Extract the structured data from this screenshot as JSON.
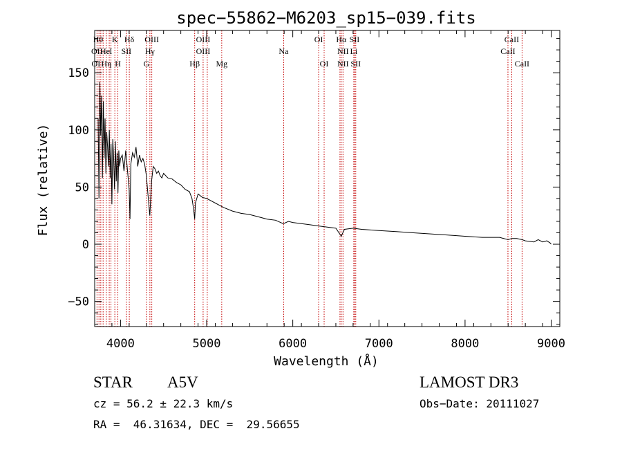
{
  "chart_data": {
    "type": "line",
    "title": "spec−55862−M6203_sp15−039.fits",
    "xlabel": "Wavelength (Å)",
    "ylabel": "Flux (relative)",
    "xlim": [
      3700,
      9100
    ],
    "ylim": [
      -72,
      187
    ],
    "xticks": [
      {
        "value": 4000,
        "label": "4000"
      },
      {
        "value": 5000,
        "label": "5000"
      },
      {
        "value": 6000,
        "label": "6000"
      },
      {
        "value": 7000,
        "label": "7000"
      },
      {
        "value": 8000,
        "label": "8000"
      },
      {
        "value": 9000,
        "label": "9000"
      }
    ],
    "yticks": [
      {
        "value": -50,
        "label": "−50"
      },
      {
        "value": 0,
        "label": "0"
      },
      {
        "value": 50,
        "label": "50"
      },
      {
        "value": 100,
        "label": "100"
      },
      {
        "value": 150,
        "label": "150"
      }
    ],
    "series": [
      {
        "name": "flux",
        "x": [
          3740,
          3750,
          3760,
          3770,
          3780,
          3790,
          3800,
          3810,
          3820,
          3830,
          3840,
          3850,
          3860,
          3870,
          3880,
          3890,
          3900,
          3910,
          3920,
          3930,
          3940,
          3950,
          3960,
          3970,
          3980,
          3990,
          4000,
          4020,
          4040,
          4060,
          4080,
          4100,
          4110,
          4120,
          4140,
          4160,
          4180,
          4200,
          4220,
          4240,
          4260,
          4280,
          4300,
          4320,
          4340,
          4360,
          4380,
          4400,
          4420,
          4440,
          4460,
          4480,
          4500,
          4550,
          4600,
          4650,
          4700,
          4750,
          4800,
          4830,
          4850,
          4861,
          4870,
          4900,
          4950,
          5000,
          5050,
          5100,
          5150,
          5200,
          5300,
          5400,
          5500,
          5600,
          5700,
          5800,
          5890,
          5950,
          6000,
          6100,
          6200,
          6300,
          6400,
          6500,
          6563,
          6600,
          6700,
          6800,
          7000,
          7200,
          7400,
          7600,
          7800,
          8000,
          8200,
          8400,
          8498,
          8542,
          8600,
          8662,
          8700,
          8800,
          8850,
          8900,
          8950,
          8990,
          9000
        ],
        "y": [
          110,
          40,
          142,
          95,
          130,
          58,
          125,
          75,
          110,
          62,
          98,
          85,
          68,
          100,
          58,
          88,
          35,
          92,
          76,
          48,
          90,
          55,
          80,
          45,
          82,
          68,
          75,
          78,
          64,
          82,
          65,
          48,
          22,
          70,
          80,
          76,
          85,
          68,
          78,
          72,
          75,
          70,
          60,
          42,
          25,
          55,
          68,
          66,
          62,
          64,
          60,
          58,
          62,
          58,
          57,
          54,
          52,
          48,
          46,
          40,
          30,
          22,
          36,
          44,
          41,
          40,
          38,
          36,
          34,
          32,
          29,
          27,
          26,
          24,
          22,
          21,
          18,
          20,
          19,
          18,
          17,
          16,
          15,
          14,
          7,
          13,
          14,
          13,
          12,
          11,
          10,
          9,
          8,
          7,
          6,
          6,
          4,
          5,
          5,
          4,
          3,
          2,
          4,
          2,
          3,
          1,
          0
        ]
      }
    ],
    "lines_wavelength": [
      3727,
      3750,
      3771,
      3798,
      3835,
      3869,
      3889,
      3934,
      3969,
      4068,
      4102,
      4300,
      4341,
      4363,
      4861,
      4959,
      5007,
      5175,
      5894,
      6300,
      6364,
      6548,
      6563,
      6583,
      6708,
      6716,
      6731,
      8498,
      8542,
      8662
    ],
    "line_labels": [
      {
        "text": "Hθ",
        "x": 3740,
        "row": 1
      },
      {
        "text": "K",
        "x": 3934,
        "row": 1
      },
      {
        "text": "Hδ",
        "x": 4102,
        "row": 1
      },
      {
        "text": "OIII",
        "x": 4363,
        "row": 1
      },
      {
        "text": "OIII",
        "x": 4959,
        "row": 1
      },
      {
        "text": "OI",
        "x": 6300,
        "row": 1
      },
      {
        "text": "Hα",
        "x": 6563,
        "row": 1
      },
      {
        "text": "SII",
        "x": 6716,
        "row": 1
      },
      {
        "text": "CaII",
        "x": 8542,
        "row": 1
      },
      {
        "text": "OII",
        "x": 3727,
        "row": 2
      },
      {
        "text": "He",
        "x": 3820,
        "row": 2
      },
      {
        "text": "I",
        "x": 3888,
        "row": 2
      },
      {
        "text": "SII",
        "x": 4068,
        "row": 2
      },
      {
        "text": "Hγ",
        "x": 4341,
        "row": 2
      },
      {
        "text": "OIII",
        "x": 4959,
        "row": 2
      },
      {
        "text": "Na",
        "x": 5894,
        "row": 2
      },
      {
        "text": "NII",
        "x": 6583,
        "row": 2
      },
      {
        "text": "Li",
        "x": 6708,
        "row": 2
      },
      {
        "text": "CaII",
        "x": 8498,
        "row": 2
      },
      {
        "text": "OI",
        "x": 3715,
        "row": 3
      },
      {
        "text": "Hη",
        "x": 3835,
        "row": 3
      },
      {
        "text": "H",
        "x": 3969,
        "row": 3
      },
      {
        "text": "G",
        "x": 4300,
        "row": 3
      },
      {
        "text": "Hβ",
        "x": 4861,
        "row": 3
      },
      {
        "text": "Mg",
        "x": 5175,
        "row": 3
      },
      {
        "text": "OI",
        "x": 6364,
        "row": 3
      },
      {
        "text": "NII",
        "x": 6583,
        "row": 3
      },
      {
        "text": "SII",
        "x": 6731,
        "row": 3
      },
      {
        "text": "CaII",
        "x": 8662,
        "row": 3
      }
    ]
  },
  "info": {
    "object_class": "STAR",
    "subclass": "A5V",
    "survey": "LAMOST DR3",
    "redshift": "cz = 56.2 ± 22.3 km/s",
    "obs_date": "Obs−Date: 20111027",
    "coords": "RA =  46.31634, DEC =  29.56655"
  }
}
